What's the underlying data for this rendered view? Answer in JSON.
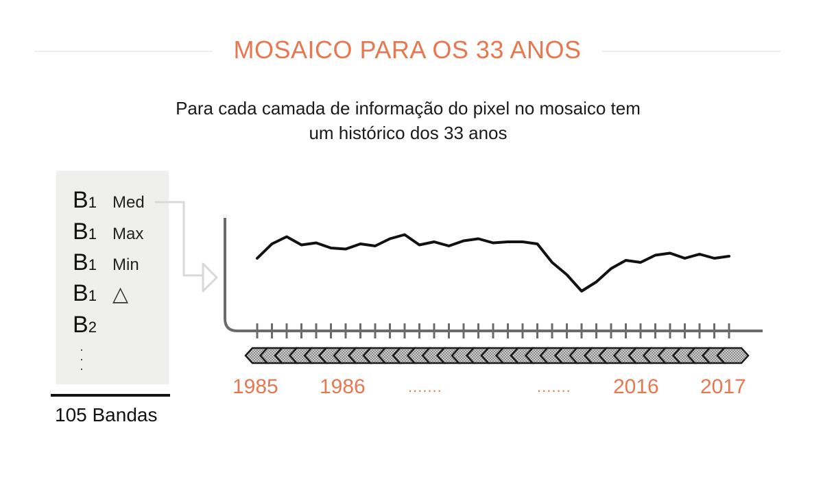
{
  "title": "MOSAICO PARA OS 33 ANOS",
  "subtitle": [
    "Para cada camada de informação do pixel no mosaico tem",
    "um histórico dos 33 anos"
  ],
  "bands": [
    {
      "code": "B",
      "sub": "1",
      "stat": "Med"
    },
    {
      "code": "B",
      "sub": "1",
      "stat": "Max"
    },
    {
      "code": "B",
      "sub": "1",
      "stat": "Min"
    },
    {
      "code": "B",
      "sub": "1",
      "stat": "△"
    },
    {
      "code": "B",
      "sub": "2",
      "stat": ""
    }
  ],
  "bands_total": "105 Bandas",
  "year_labels": [
    "1985",
    "1986",
    ".......",
    ".......",
    "2016",
    "2017"
  ],
  "colors": {
    "accent": "#e8774f",
    "line": "#111111",
    "axis": "#6b6b6b",
    "panel": "#efefed"
  },
  "chart_data": {
    "type": "line",
    "y": [
      0.62,
      0.76,
      0.83,
      0.75,
      0.77,
      0.72,
      0.71,
      0.76,
      0.74,
      0.81,
      0.85,
      0.75,
      0.78,
      0.74,
      0.79,
      0.81,
      0.77,
      0.78,
      0.78,
      0.76,
      0.58,
      0.46,
      0.3,
      0.39,
      0.52,
      0.6,
      0.58,
      0.65,
      0.67,
      0.62,
      0.66,
      0.62,
      0.64
    ]
  }
}
